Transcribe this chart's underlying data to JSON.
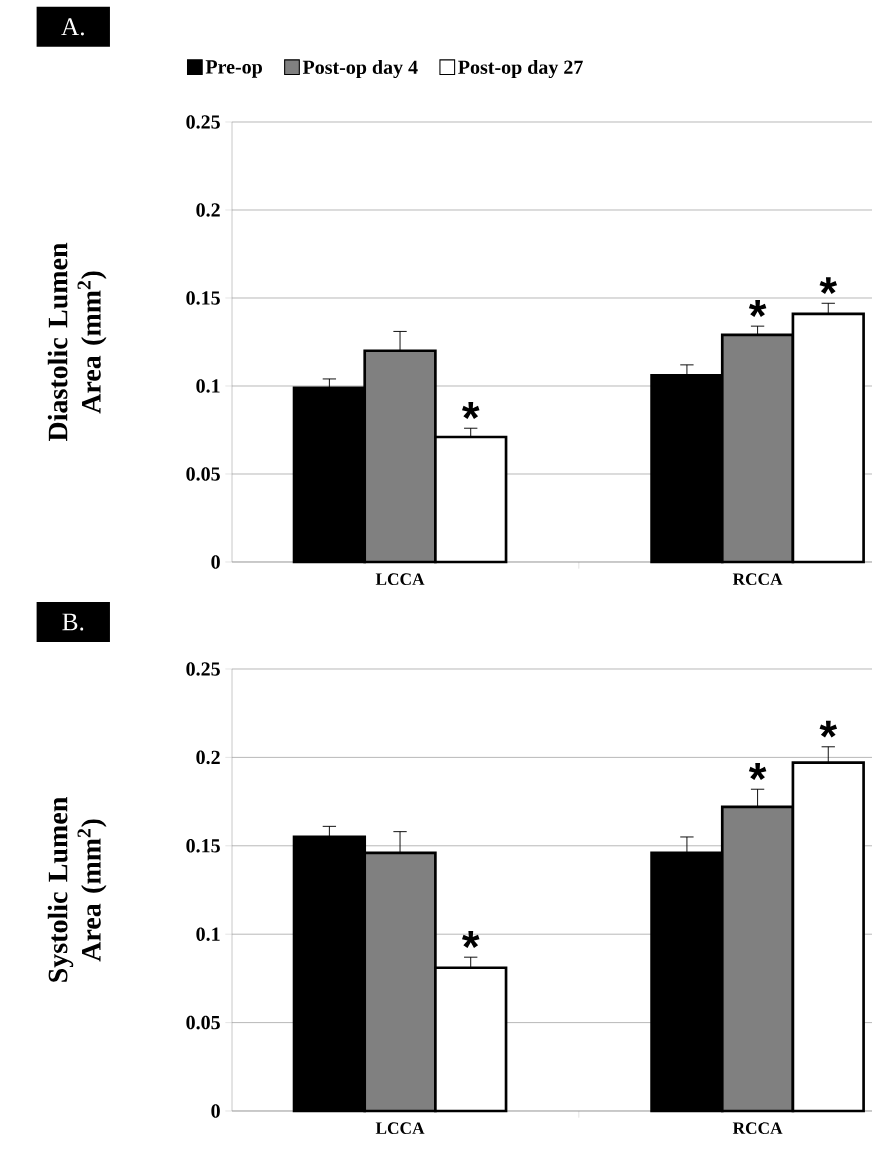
{
  "chart_data": [
    {
      "type": "bar",
      "title": "A.",
      "ylabel": "Diastolic Lumen Area (mm$^{2}$)",
      "categories": [
        "LCCA",
        "RCCA"
      ],
      "ylim": [
        0,
        0.25
      ],
      "yticks": [
        0,
        0.05,
        0.1,
        0.15,
        0.2,
        0.25
      ],
      "grid": "y",
      "legend": "top",
      "series": [
        {
          "name": "Pre-op",
          "color": "#000000",
          "values": [
            0.099,
            0.106
          ],
          "errors": [
            [
              0.099,
              0.104
            ],
            [
              0.106,
              0.112
            ]
          ],
          "value_labels": [
            null,
            null
          ]
        },
        {
          "name": "Post-op day 4",
          "color": "#808080",
          "values": [
            0.12,
            0.129
          ],
          "errors": [
            [
              0.12,
              0.131
            ],
            [
              0.129,
              0.134
            ]
          ],
          "value_labels": [
            null,
            "*"
          ]
        },
        {
          "name": "Post-op day 27",
          "color": "#ffffff",
          "values": [
            0.071,
            0.141
          ],
          "errors": [
            [
              0.071,
              0.076
            ],
            [
              0.141,
              0.147
            ]
          ],
          "value_labels": [
            "*",
            "*"
          ]
        }
      ]
    },
    {
      "type": "bar",
      "title": "B.",
      "ylabel": "Systolic Lumen Area (mm$^{2}$)",
      "categories": [
        "LCCA",
        "RCCA"
      ],
      "ylim": [
        0,
        0.25
      ],
      "yticks": [
        0,
        0.05,
        0.1,
        0.15,
        0.2,
        0.25
      ],
      "grid": "y",
      "series": [
        {
          "color": "#000000",
          "values": [
            0.155,
            0.146
          ],
          "errors": [
            [
              0.155,
              0.161
            ],
            [
              0.146,
              0.155
            ]
          ],
          "value_labels": [
            null,
            null
          ]
        },
        {
          "color": "#808080",
          "values": [
            0.146,
            0.172
          ],
          "errors": [
            [
              0.146,
              0.158
            ],
            [
              0.172,
              0.182
            ]
          ],
          "value_labels": [
            null,
            "*"
          ]
        },
        {
          "color": "#ffffff",
          "values": [
            0.081,
            0.197
          ],
          "errors": [
            [
              0.081,
              0.087
            ],
            [
              0.197,
              0.206
            ]
          ],
          "value_labels": [
            "*",
            "*"
          ]
        }
      ]
    }
  ]
}
